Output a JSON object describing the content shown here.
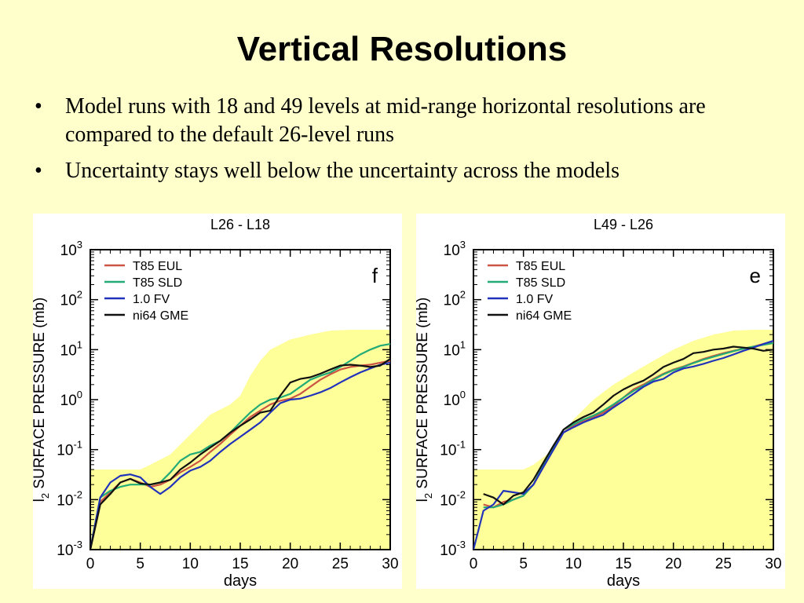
{
  "slide": {
    "title": "Vertical Resolutions",
    "bullets": [
      "Model runs with 18 and 49 levels at mid-range horizontal resolutions are compared to the default 26-level runs",
      "Uncertainty stays well below the uncertainty across the models"
    ]
  },
  "chart_data": [
    {
      "type": "line",
      "title": "L26 - L18",
      "panel_letter": "f",
      "xlabel": "days",
      "ylabel_prefix": "l",
      "ylabel_sub": "2",
      "ylabel_rest": " SURFACE PRESSURE (mb)",
      "yscale": "log",
      "xlim": [
        0,
        30
      ],
      "ylim": [
        0.001,
        1000
      ],
      "xticks": [
        "0",
        "5",
        "10",
        "15",
        "20",
        "25",
        "30"
      ],
      "yticks": [
        {
          "base": "10",
          "exp": "-3"
        },
        {
          "base": "10",
          "exp": "-2"
        },
        {
          "base": "10",
          "exp": "-1"
        },
        {
          "base": "10",
          "exp": "0"
        },
        {
          "base": "10",
          "exp": "1"
        },
        {
          "base": "10",
          "exp": "2"
        },
        {
          "base": "10",
          "exp": "3"
        }
      ],
      "legend_position": "top-left",
      "shaded_band_upper": {
        "x": [
          0,
          5,
          6,
          8,
          10,
          12,
          14,
          15,
          16,
          17,
          18,
          20,
          22,
          24,
          26,
          28,
          30
        ],
        "y": [
          0.04,
          0.04,
          0.05,
          0.08,
          0.2,
          0.5,
          0.8,
          1.2,
          3,
          6,
          10,
          16,
          20,
          24,
          25,
          25,
          25
        ]
      },
      "series": [
        {
          "name": "T85 EUL",
          "color": "#cc5544",
          "x": [
            0,
            1,
            2,
            3,
            4,
            5,
            6,
            7,
            8,
            9,
            10,
            11,
            12,
            13,
            14,
            15,
            16,
            17,
            18,
            19,
            20,
            21,
            22,
            23,
            24,
            25,
            26,
            27,
            28,
            29,
            30
          ],
          "y": [
            0.001,
            0.009,
            0.014,
            0.022,
            0.026,
            0.022,
            0.018,
            0.02,
            0.025,
            0.035,
            0.045,
            0.06,
            0.09,
            0.13,
            0.2,
            0.3,
            0.45,
            0.6,
            0.8,
            0.95,
            1.05,
            1.3,
            1.8,
            2.5,
            3.2,
            4,
            4.5,
            4.8,
            5,
            5.5,
            6
          ]
        },
        {
          "name": "T85 SLD",
          "color": "#22aa77",
          "x": [
            0,
            1,
            2,
            3,
            4,
            5,
            6,
            7,
            8,
            9,
            10,
            11,
            12,
            13,
            14,
            15,
            16,
            17,
            18,
            19,
            20,
            21,
            22,
            23,
            24,
            25,
            26,
            27,
            28,
            29,
            30
          ],
          "y": [
            0.001,
            0.011,
            0.015,
            0.018,
            0.02,
            0.02,
            0.02,
            0.022,
            0.035,
            0.06,
            0.08,
            0.09,
            0.12,
            0.15,
            0.22,
            0.35,
            0.55,
            0.8,
            1.0,
            1.1,
            1.3,
            1.8,
            2.5,
            3.0,
            3.5,
            4.5,
            6,
            8,
            10,
            12,
            13
          ]
        },
        {
          "name": "1.0 FV",
          "color": "#2233bb",
          "x": [
            0,
            1,
            2,
            3,
            4,
            5,
            6,
            7,
            8,
            9,
            10,
            11,
            12,
            13,
            14,
            15,
            16,
            17,
            18,
            19,
            20,
            21,
            22,
            23,
            24,
            25,
            26,
            27,
            28,
            29,
            30
          ],
          "y": [
            0.001,
            0.011,
            0.022,
            0.03,
            0.032,
            0.028,
            0.018,
            0.013,
            0.018,
            0.028,
            0.038,
            0.045,
            0.06,
            0.09,
            0.13,
            0.18,
            0.25,
            0.35,
            0.55,
            0.85,
            1.0,
            1.05,
            1.2,
            1.4,
            1.7,
            2.2,
            2.8,
            3.5,
            4.2,
            5.0,
            5.5
          ]
        },
        {
          "name": "ni64 GME",
          "color": "#111111",
          "x": [
            0,
            1,
            2,
            3,
            4,
            5,
            6,
            7,
            8,
            9,
            10,
            11,
            12,
            13,
            14,
            15,
            16,
            17,
            18,
            19,
            20,
            21,
            22,
            23,
            24,
            25,
            26,
            27,
            28,
            29,
            30
          ],
          "y": [
            0.001,
            0.008,
            0.013,
            0.022,
            0.026,
            0.021,
            0.02,
            0.022,
            0.025,
            0.04,
            0.055,
            0.08,
            0.11,
            0.15,
            0.22,
            0.3,
            0.4,
            0.55,
            0.6,
            1.2,
            2.2,
            2.6,
            2.8,
            3.3,
            4.0,
            4.8,
            5.0,
            4.8,
            4.5,
            4.8,
            6.5
          ]
        }
      ]
    },
    {
      "type": "line",
      "title": "L49 - L26",
      "panel_letter": "e",
      "xlabel": "days",
      "ylabel_prefix": "l",
      "ylabel_sub": "2",
      "ylabel_rest": " SURFACE PRESSURE (mb)",
      "yscale": "log",
      "xlim": [
        0,
        30
      ],
      "ylim": [
        0.001,
        1000
      ],
      "xticks": [
        "0",
        "5",
        "10",
        "15",
        "20",
        "25",
        "30"
      ],
      "yticks": [
        {
          "base": "10",
          "exp": "-3"
        },
        {
          "base": "10",
          "exp": "-2"
        },
        {
          "base": "10",
          "exp": "-1"
        },
        {
          "base": "10",
          "exp": "0"
        },
        {
          "base": "10",
          "exp": "1"
        },
        {
          "base": "10",
          "exp": "2"
        },
        {
          "base": "10",
          "exp": "3"
        }
      ],
      "legend_position": "top-left",
      "shaded_band_upper": {
        "x": [
          0,
          5,
          6,
          8,
          10,
          12,
          14,
          16,
          18,
          20,
          22,
          24,
          26,
          28,
          30
        ],
        "y": [
          0.04,
          0.04,
          0.05,
          0.1,
          0.4,
          1.0,
          2.0,
          3.5,
          6,
          10,
          15,
          20,
          24,
          25,
          25
        ]
      },
      "series": [
        {
          "name": "T85 EUL",
          "color": "#cc5544",
          "x": [
            1,
            2,
            3,
            4,
            5,
            6,
            7,
            8,
            9,
            10,
            11,
            12,
            13,
            14,
            15,
            16,
            17,
            18,
            19,
            20,
            21,
            22,
            23,
            24,
            25,
            26,
            27,
            28,
            29,
            30
          ],
          "y": [
            0.008,
            0.007,
            0.009,
            0.01,
            0.012,
            0.02,
            0.045,
            0.1,
            0.22,
            0.3,
            0.38,
            0.45,
            0.55,
            0.75,
            1.1,
            1.6,
            2.0,
            2.6,
            3.3,
            4.0,
            4.6,
            5.5,
            6.5,
            7.5,
            8.5,
            9.5,
            10.5,
            11.5,
            13,
            14
          ]
        },
        {
          "name": "T85 SLD",
          "color": "#22aa77",
          "x": [
            1,
            2,
            3,
            4,
            5,
            6,
            7,
            8,
            9,
            10,
            11,
            12,
            13,
            14,
            15,
            16,
            17,
            18,
            19,
            20,
            21,
            22,
            23,
            24,
            25,
            26,
            27,
            28,
            29,
            30
          ],
          "y": [
            0.007,
            0.007,
            0.008,
            0.01,
            0.012,
            0.02,
            0.05,
            0.11,
            0.25,
            0.32,
            0.4,
            0.48,
            0.6,
            0.8,
            1.1,
            1.5,
            1.9,
            2.5,
            3.2,
            3.9,
            4.5,
            5.4,
            6.3,
            7.2,
            8.2,
            9.3,
            10.5,
            11.5,
            12.5,
            13.5
          ]
        },
        {
          "name": "1.0 FV",
          "color": "#2233bb",
          "x": [
            0,
            1,
            2,
            3,
            4,
            5,
            6,
            7,
            8,
            9,
            10,
            11,
            12,
            13,
            14,
            15,
            16,
            17,
            18,
            19,
            20,
            21,
            22,
            23,
            24,
            25,
            26,
            27,
            28,
            29,
            30
          ],
          "y": [
            0.001,
            0.006,
            0.008,
            0.015,
            0.014,
            0.013,
            0.02,
            0.045,
            0.1,
            0.22,
            0.28,
            0.35,
            0.42,
            0.5,
            0.7,
            0.95,
            1.3,
            1.8,
            2.3,
            2.6,
            3.5,
            4.2,
            4.6,
            5.2,
            6.0,
            6.8,
            8.0,
            9.5,
            11,
            13,
            15
          ]
        },
        {
          "name": "ni64 GME",
          "color": "#111111",
          "x": [
            1,
            2,
            3,
            4,
            5,
            6,
            7,
            8,
            9,
            10,
            11,
            12,
            13,
            14,
            15,
            16,
            17,
            18,
            19,
            20,
            21,
            22,
            23,
            24,
            25,
            26,
            27,
            28,
            29,
            30
          ],
          "y": [
            0.013,
            0.011,
            0.008,
            0.012,
            0.014,
            0.025,
            0.055,
            0.12,
            0.25,
            0.35,
            0.45,
            0.55,
            0.8,
            1.2,
            1.6,
            2.0,
            2.4,
            3.2,
            4.5,
            5.5,
            6.5,
            8.5,
            9.0,
            10.0,
            10.5,
            11.5,
            11.0,
            10.5,
            9.5,
            10.0
          ]
        }
      ]
    }
  ]
}
